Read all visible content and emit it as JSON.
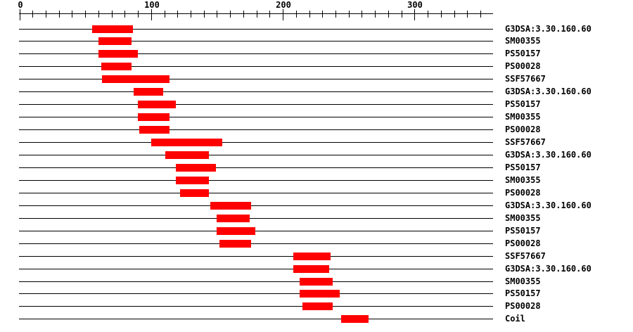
{
  "page": {
    "background": "#ffffff"
  },
  "chart_data": {
    "type": "bar",
    "variant": "horizontal-range-feature-track",
    "title": "",
    "xlabel": "",
    "ylabel": "",
    "xlim": [
      0,
      360
    ],
    "x_major_ticks": [
      0,
      100,
      200,
      300
    ],
    "x_major_tick_labels": [
      "0",
      "100",
      "200",
      "300"
    ],
    "x_minor_tick_interval": 10,
    "grid": false,
    "legend": false,
    "colors": {
      "bar": "#ff0000",
      "axis": "#000000",
      "text": "#000000",
      "background": "#ffffff"
    },
    "rows": [
      {
        "label": "G3DSA:3.30.160.60",
        "start": 55,
        "end": 86
      },
      {
        "label": "SM00355",
        "start": 60,
        "end": 85
      },
      {
        "label": "PS50157",
        "start": 60,
        "end": 90
      },
      {
        "label": "PS00028",
        "start": 62,
        "end": 85
      },
      {
        "label": "SSF57667",
        "start": 63,
        "end": 114
      },
      {
        "label": "G3DSA:3.30.160.60",
        "start": 87,
        "end": 109
      },
      {
        "label": "PS50157",
        "start": 90,
        "end": 119
      },
      {
        "label": "SM00355",
        "start": 90,
        "end": 114
      },
      {
        "label": "PS00028",
        "start": 91,
        "end": 114
      },
      {
        "label": "SSF57667",
        "start": 100,
        "end": 154
      },
      {
        "label": "G3DSA:3.30.160.60",
        "start": 111,
        "end": 144
      },
      {
        "label": "PS50157",
        "start": 119,
        "end": 149
      },
      {
        "label": "SM00355",
        "start": 119,
        "end": 144
      },
      {
        "label": "PS00028",
        "start": 122,
        "end": 144
      },
      {
        "label": "G3DSA:3.30.160.60",
        "start": 145,
        "end": 176
      },
      {
        "label": "SM00355",
        "start": 150,
        "end": 175
      },
      {
        "label": "PS50157",
        "start": 150,
        "end": 179
      },
      {
        "label": "PS00028",
        "start": 152,
        "end": 176
      },
      {
        "label": "SSF57667",
        "start": 208,
        "end": 236
      },
      {
        "label": "G3DSA:3.30.160.60",
        "start": 208,
        "end": 235
      },
      {
        "label": "SM00355",
        "start": 213,
        "end": 238
      },
      {
        "label": "PS50157",
        "start": 213,
        "end": 243
      },
      {
        "label": "PS00028",
        "start": 215,
        "end": 238
      },
      {
        "label": "Coil",
        "start": 244,
        "end": 265
      }
    ]
  }
}
